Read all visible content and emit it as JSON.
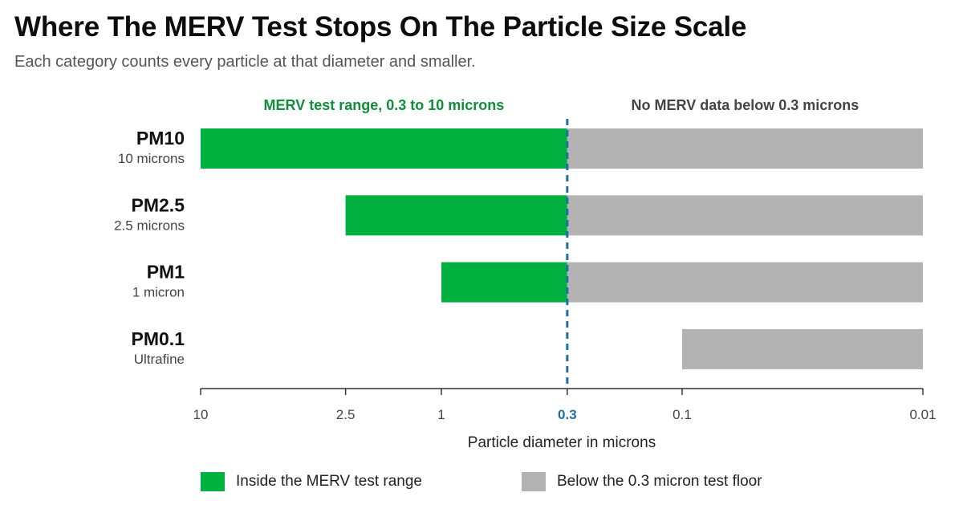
{
  "title": "Where The MERV Test Stops On The Particle Size Scale",
  "subtitle": "Each category counts every particle at that diameter and smaller.",
  "colors": {
    "inside": "#00b140",
    "below": "#b3b3b3",
    "threshold": "#1f6fa3",
    "axis": "#333333",
    "label_strong": "#111111",
    "label_muted": "#444444",
    "inside_heading": "#0f8f3a",
    "below_heading": "#444444"
  },
  "chart_data": {
    "type": "bar",
    "orientation": "horizontal",
    "x_scale": "log",
    "x_direction": "decreasing",
    "xlabel": "Particle diameter in microns",
    "xlim": [
      10,
      0.01
    ],
    "x_ticks": [
      {
        "value": 10,
        "label": "10",
        "highlight": false
      },
      {
        "value": 2.5,
        "label": "2.5",
        "highlight": false
      },
      {
        "value": 1,
        "label": "1",
        "highlight": false
      },
      {
        "value": 0.3,
        "label": "0.3",
        "highlight": true
      },
      {
        "value": 0.1,
        "label": "0.1",
        "highlight": false
      },
      {
        "value": 0.01,
        "label": "0.01",
        "highlight": false
      }
    ],
    "threshold": 0.3,
    "region_labels": {
      "inside": "MERV test range, 0.3 to 10 microns",
      "below": "No MERV data below 0.3 microns"
    },
    "categories": [
      {
        "name": "PM10",
        "sublabel": "10 microns",
        "from": 10,
        "to": 0.01
      },
      {
        "name": "PM2.5",
        "sublabel": "2.5 microns",
        "from": 2.5,
        "to": 0.01
      },
      {
        "name": "PM1",
        "sublabel": "1 micron",
        "from": 1,
        "to": 0.01
      },
      {
        "name": "PM0.1",
        "sublabel": "Ultrafine",
        "from": 0.1,
        "to": 0.01
      }
    ],
    "legend": [
      {
        "key": "inside",
        "label": "Inside the MERV test range"
      },
      {
        "key": "below",
        "label": "Below the 0.3 micron test floor"
      }
    ]
  }
}
